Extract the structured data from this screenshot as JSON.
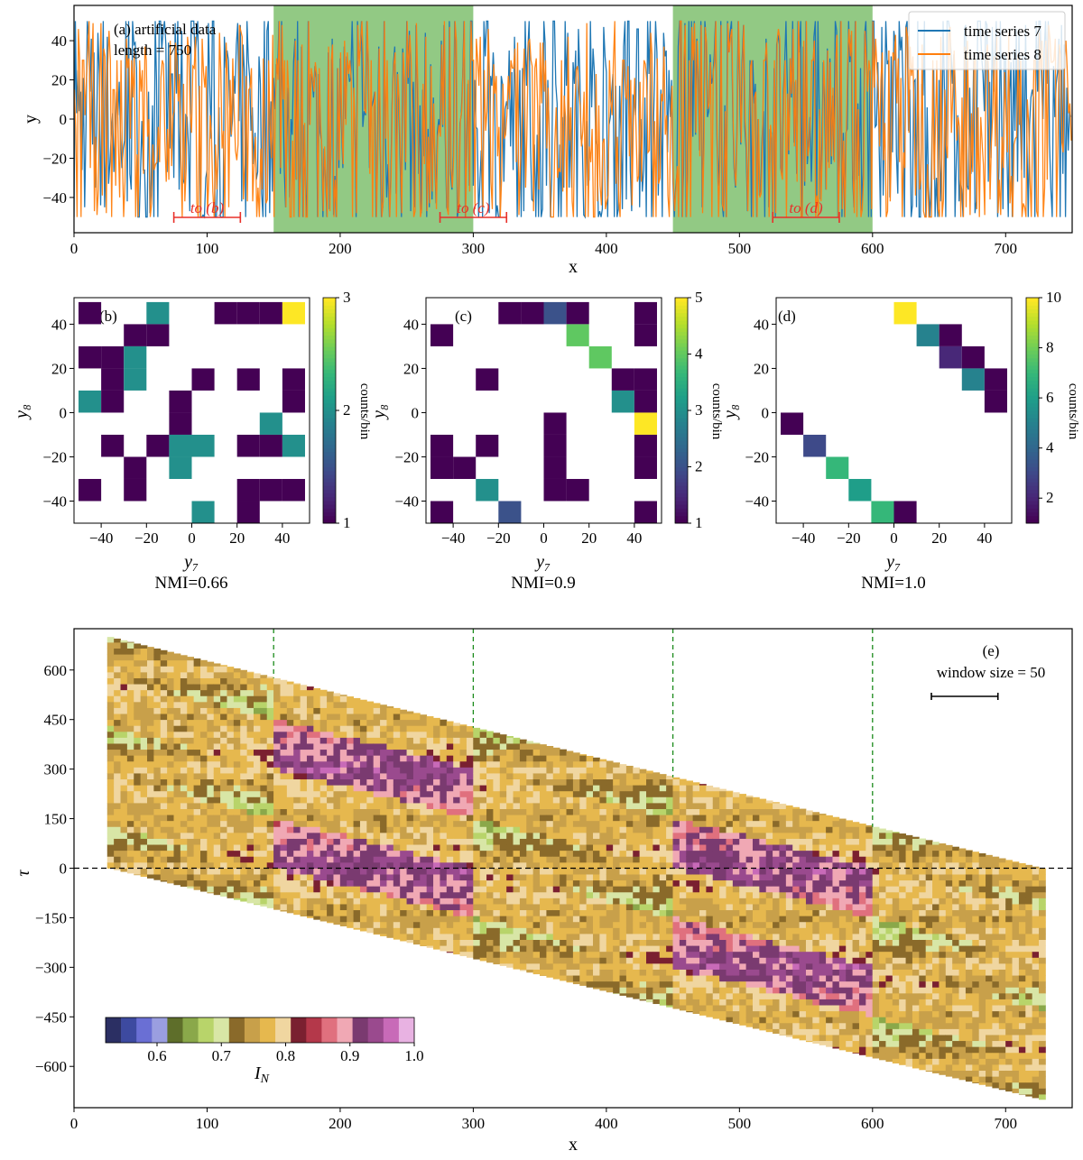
{
  "colors": {
    "series7": "#1f77b4",
    "series8": "#ff7f0e",
    "highlight": "#7fbf6f",
    "marker": "#e8302a",
    "dashed": "#1a8a1a"
  },
  "chart_data": [
    {
      "panel": "a",
      "type": "line",
      "annotation": [
        "(a) artificial data",
        "length = 750"
      ],
      "xlabel": "x",
      "ylabel": "y",
      "xlim": [
        0,
        750
      ],
      "ylim": [
        -58,
        58
      ],
      "xticks": [
        0,
        100,
        200,
        300,
        400,
        500,
        600,
        700
      ],
      "yticks": [
        -40,
        -20,
        0,
        20,
        40
      ],
      "legend": {
        "placement": "top-right",
        "entries": [
          "time series 7",
          "time series 8"
        ]
      },
      "series": [
        {
          "name": "time series 7",
          "description_points": 750,
          "range": [
            -50,
            50
          ]
        },
        {
          "name": "time series 8",
          "description_points": 750,
          "range": [
            -50,
            50
          ]
        }
      ],
      "shaded_regions": [
        [
          150,
          300
        ],
        [
          450,
          600
        ]
      ],
      "window_markers": [
        {
          "label": "to (b)",
          "range": [
            75,
            125
          ]
        },
        {
          "label": "to (c)",
          "range": [
            275,
            325
          ]
        },
        {
          "label": "to (d)",
          "range": [
            525,
            575
          ]
        }
      ]
    },
    {
      "panel": "b",
      "type": "heatmap",
      "label": "(b)",
      "xlabel": "y₇",
      "ylabel": "y₈",
      "xticks": [
        -40,
        -20,
        0,
        20,
        40
      ],
      "yticks": [
        -40,
        -20,
        0,
        20,
        40
      ],
      "colorbar": {
        "label": "counts/bin",
        "min": 1,
        "max": 3,
        "ticks": [
          1,
          2,
          3
        ]
      },
      "footer": "NMI=0.66",
      "cells": [
        [
          0,
          9,
          1
        ],
        [
          3,
          9,
          2
        ],
        [
          6,
          9,
          1
        ],
        [
          7,
          9,
          1
        ],
        [
          8,
          9,
          1
        ],
        [
          9,
          9,
          3
        ],
        [
          2,
          8,
          1
        ],
        [
          3,
          8,
          1
        ],
        [
          0,
          7,
          1
        ],
        [
          1,
          7,
          1
        ],
        [
          2,
          7,
          2
        ],
        [
          1,
          6,
          1
        ],
        [
          2,
          6,
          2
        ],
        [
          5,
          6,
          1
        ],
        [
          7,
          6,
          1
        ],
        [
          9,
          6,
          1
        ],
        [
          0,
          5,
          2
        ],
        [
          1,
          5,
          1
        ],
        [
          4,
          5,
          1
        ],
        [
          9,
          5,
          1
        ],
        [
          4,
          4,
          1
        ],
        [
          8,
          4,
          2
        ],
        [
          1,
          3,
          1
        ],
        [
          3,
          3,
          1
        ],
        [
          4,
          3,
          2
        ],
        [
          5,
          3,
          2
        ],
        [
          7,
          3,
          1
        ],
        [
          8,
          3,
          1
        ],
        [
          9,
          3,
          2
        ],
        [
          2,
          2,
          1
        ],
        [
          4,
          2,
          2
        ],
        [
          0,
          1,
          1
        ],
        [
          2,
          1,
          1
        ],
        [
          7,
          1,
          1
        ],
        [
          8,
          1,
          1
        ],
        [
          9,
          1,
          1
        ],
        [
          5,
          0,
          2
        ],
        [
          7,
          0,
          1
        ]
      ]
    },
    {
      "panel": "c",
      "type": "heatmap",
      "label": "(c)",
      "xlabel": "y₇",
      "ylabel": "y₈",
      "xticks": [
        -40,
        -20,
        0,
        20,
        40
      ],
      "yticks": [
        -40,
        -20,
        0,
        20,
        40
      ],
      "colorbar": {
        "label": "counts/bin",
        "min": 1,
        "max": 5,
        "ticks": [
          1,
          2,
          3,
          4,
          5
        ]
      },
      "footer": "NMI=0.9",
      "cells": [
        [
          3,
          9,
          1
        ],
        [
          4,
          9,
          1
        ],
        [
          5,
          9,
          2
        ],
        [
          6,
          9,
          1
        ],
        [
          9,
          9,
          1
        ],
        [
          0,
          8,
          1
        ],
        [
          6,
          8,
          4
        ],
        [
          9,
          8,
          1
        ],
        [
          7,
          7,
          4
        ],
        [
          2,
          6,
          1
        ],
        [
          8,
          6,
          1
        ],
        [
          9,
          6,
          1
        ],
        [
          8,
          5,
          3
        ],
        [
          9,
          5,
          1
        ],
        [
          5,
          4,
          1
        ],
        [
          9,
          4,
          5
        ],
        [
          0,
          3,
          1
        ],
        [
          2,
          3,
          1
        ],
        [
          5,
          3,
          1
        ],
        [
          9,
          3,
          1
        ],
        [
          0,
          2,
          1
        ],
        [
          1,
          2,
          1
        ],
        [
          5,
          2,
          1
        ],
        [
          9,
          2,
          1
        ],
        [
          2,
          1,
          3
        ],
        [
          5,
          1,
          1
        ],
        [
          6,
          1,
          1
        ],
        [
          0,
          0,
          1
        ],
        [
          3,
          0,
          2
        ],
        [
          9,
          0,
          1
        ],
        [
          1,
          -1,
          1
        ],
        [
          2,
          -1,
          1
        ],
        [
          3,
          -1,
          1
        ],
        [
          4,
          -1,
          2
        ],
        [
          5,
          -1,
          1
        ]
      ]
    },
    {
      "panel": "d",
      "type": "heatmap",
      "label": "(d)",
      "xlabel": "y₇",
      "ylabel": "y₈",
      "xticks": [
        -40,
        -20,
        0,
        20,
        40
      ],
      "yticks": [
        -40,
        -20,
        0,
        20,
        40
      ],
      "colorbar": {
        "label": "counts/bin",
        "min": 1,
        "max": 10,
        "ticks": [
          2,
          4,
          6,
          8,
          10
        ]
      },
      "footer": "NMI=1.0",
      "cells": [
        [
          5,
          9,
          10
        ],
        [
          6,
          8,
          5
        ],
        [
          7,
          8,
          1
        ],
        [
          7,
          7,
          2
        ],
        [
          8,
          7,
          1
        ],
        [
          8,
          6,
          5
        ],
        [
          9,
          6,
          1
        ],
        [
          9,
          5,
          1
        ],
        [
          0,
          4,
          1
        ],
        [
          1,
          3,
          3
        ],
        [
          2,
          2,
          7
        ],
        [
          3,
          1,
          6
        ],
        [
          4,
          0,
          7
        ],
        [
          5,
          0,
          1
        ]
      ]
    },
    {
      "panel": "e",
      "type": "heatmap",
      "annotation": [
        "(e)",
        "window size = 50"
      ],
      "xlabel": "x",
      "ylabel": "τ",
      "xlim": [
        0,
        750
      ],
      "ylim": [
        -725,
        725
      ],
      "xticks": [
        0,
        100,
        200,
        300,
        400,
        500,
        600,
        700
      ],
      "yticks": [
        -600,
        -450,
        -300,
        -150,
        0,
        150,
        300,
        450,
        600
      ],
      "dashed_vertical_lines": [
        150,
        300,
        450,
        600
      ],
      "dashed_horizontal_line": 0,
      "colorbar": {
        "label": "I_N",
        "label_main": "I",
        "label_sub": "N",
        "min": 0.52,
        "max": 1.0,
        "ticks": [
          0.6,
          0.7,
          0.8,
          0.9,
          1.0
        ],
        "tick_labels": [
          "0.6",
          "0.7",
          "0.8",
          "0.9",
          "1.0"
        ]
      },
      "palette": [
        "#2b2f63",
        "#3d4aa0",
        "#6a6fd4",
        "#9a9ee0",
        "#5e6e2a",
        "#8aa84a",
        "#b8d46a",
        "#d8e6a6",
        "#8a6a2a",
        "#c8a04a",
        "#e6b84e",
        "#f0d6a0",
        "#7a2030",
        "#b4384a",
        "#e0707e",
        "#f0a8b4",
        "#7a3a70",
        "#9a4a8e",
        "#c86ab8",
        "#e8b2e2"
      ],
      "regimes": [
        {
          "x_range": [
            0,
            150
          ],
          "I_N_on_diagonal": 0.78,
          "I_N_at_lag_300": 0.62
        },
        {
          "x_range": [
            150,
            300
          ],
          "I_N_on_diagonal": 0.92,
          "I_N_at_lag_300": 0.92
        },
        {
          "x_range": [
            300,
            450
          ],
          "I_N_on_diagonal": 0.78,
          "I_N_at_lag_300": 0.65
        },
        {
          "x_range": [
            450,
            600
          ],
          "I_N_on_diagonal": 0.92,
          "I_N_at_lag_300": 0.92
        },
        {
          "x_range": [
            600,
            750
          ],
          "I_N_on_diagonal": 0.78,
          "I_N_at_lag_300": 0.62
        }
      ]
    }
  ]
}
